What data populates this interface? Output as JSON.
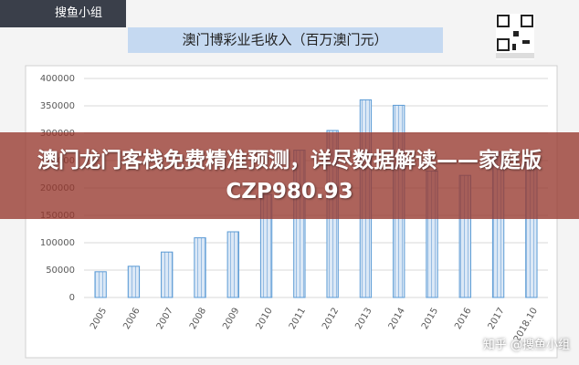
{
  "chart_data": {
    "type": "bar",
    "title": "澳门博彩业毛收入（百万澳门元）",
    "categories": [
      "2005",
      "2006",
      "2007",
      "2008",
      "2009",
      "2010",
      "2011",
      "2012",
      "2013",
      "2014",
      "2015",
      "2016",
      "2017",
      "2018.10"
    ],
    "values": [
      47000,
      57000,
      83000,
      109000,
      120000,
      188000,
      269000,
      305000,
      361000,
      351000,
      231000,
      223000,
      266000,
      250000
    ],
    "color": "#5b9bd5",
    "ylim": [
      0,
      400000
    ],
    "yticks": [
      0,
      50000,
      100000,
      150000,
      200000,
      250000,
      300000,
      350000,
      400000
    ],
    "grid": true
  },
  "overlay": {
    "headline": "澳门龙门客栈免费精准预测，详尽数据解读——家庭版CZP980.93",
    "logo": "搜鱼小组",
    "watermark": "知乎 @搜鱼小组"
  }
}
